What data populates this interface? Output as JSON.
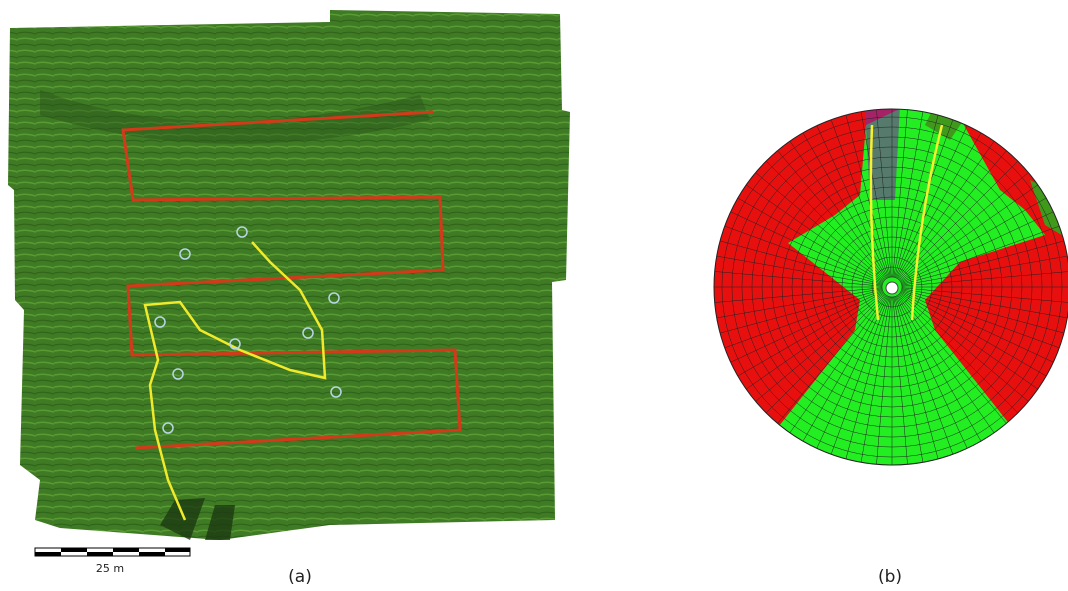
{
  "panels": [
    {
      "label": "(a)",
      "scale_label": "25 m"
    },
    {
      "label": "(b)"
    }
  ]
}
